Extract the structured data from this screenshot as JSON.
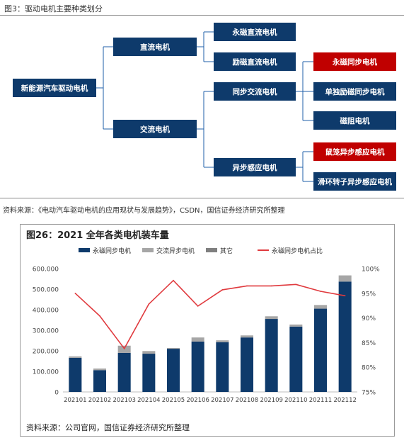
{
  "figure3": {
    "title": "图3：驱动电机主要种类划分",
    "root": "新能源汽车驱动电机",
    "level1": [
      "直流电机",
      "交流电机"
    ],
    "dc_children": [
      "永磁直流电机",
      "励磁直流电机"
    ],
    "ac_children": [
      "同步交流电机",
      "异步感应电机"
    ],
    "sync_children": [
      "永磁同步电机",
      "单独励磁同步电机",
      "磁阻电机"
    ],
    "async_children": [
      "鼠笼异步感应电机",
      "滑环转子异步感应电机"
    ],
    "colors": {
      "node": "#0e3a6b",
      "highlight": "#c00000",
      "connector": "#1f5fa8"
    },
    "source": "资料来源：《电动汽车驱动电机的应用现状与发展趋势》，CSDN，国信证券经济研究所整理"
  },
  "figure26": {
    "title": "图26：2021 全年各类电机装车量",
    "source": "资料来源：公司官网，国信证券经济研究所整理"
  },
  "chart_data": {
    "type": "bar",
    "stacked": true,
    "categories": [
      "202101",
      "202102",
      "202103",
      "202104",
      "202105",
      "202106",
      "202107",
      "202108",
      "202109",
      "202110",
      "202111",
      "202112"
    ],
    "series": [
      {
        "name": "永磁同步电机",
        "type": "bar",
        "axis": "left",
        "color": "#0e3a6b",
        "values": [
          166,
          106,
          190,
          186,
          210,
          245,
          242,
          265,
          355,
          318,
          405,
          537
        ]
      },
      {
        "name": "交流异步电机",
        "type": "bar",
        "axis": "left",
        "color": "#a6a6a6",
        "values": [
          7,
          8,
          35,
          13,
          4,
          20,
          9,
          10,
          13,
          10,
          18,
          30
        ]
      },
      {
        "name": "其它",
        "type": "bar",
        "axis": "left",
        "color": "#7f7f7f",
        "values": [
          0,
          0,
          0,
          0,
          0,
          0,
          0,
          0,
          0,
          0,
          0,
          0
        ]
      },
      {
        "name": "永磁同步电机占比",
        "type": "line",
        "axis": "right",
        "color": "#e03a3e",
        "values": [
          95.0,
          90.4,
          83.8,
          92.8,
          97.6,
          92.4,
          95.7,
          96.5,
          96.5,
          96.8,
          95.4,
          94.5
        ]
      }
    ],
    "y_left": {
      "range": [
        0,
        600
      ],
      "ticks": [
        "0",
        "100.000",
        "200.000",
        "300.000",
        "400.000",
        "500.000",
        "600.000"
      ]
    },
    "y_right": {
      "range": [
        75,
        100
      ],
      "ticks": [
        "75%",
        "80%",
        "85%",
        "90%",
        "95%",
        "100%"
      ]
    },
    "grid": false,
    "legend": "top"
  }
}
